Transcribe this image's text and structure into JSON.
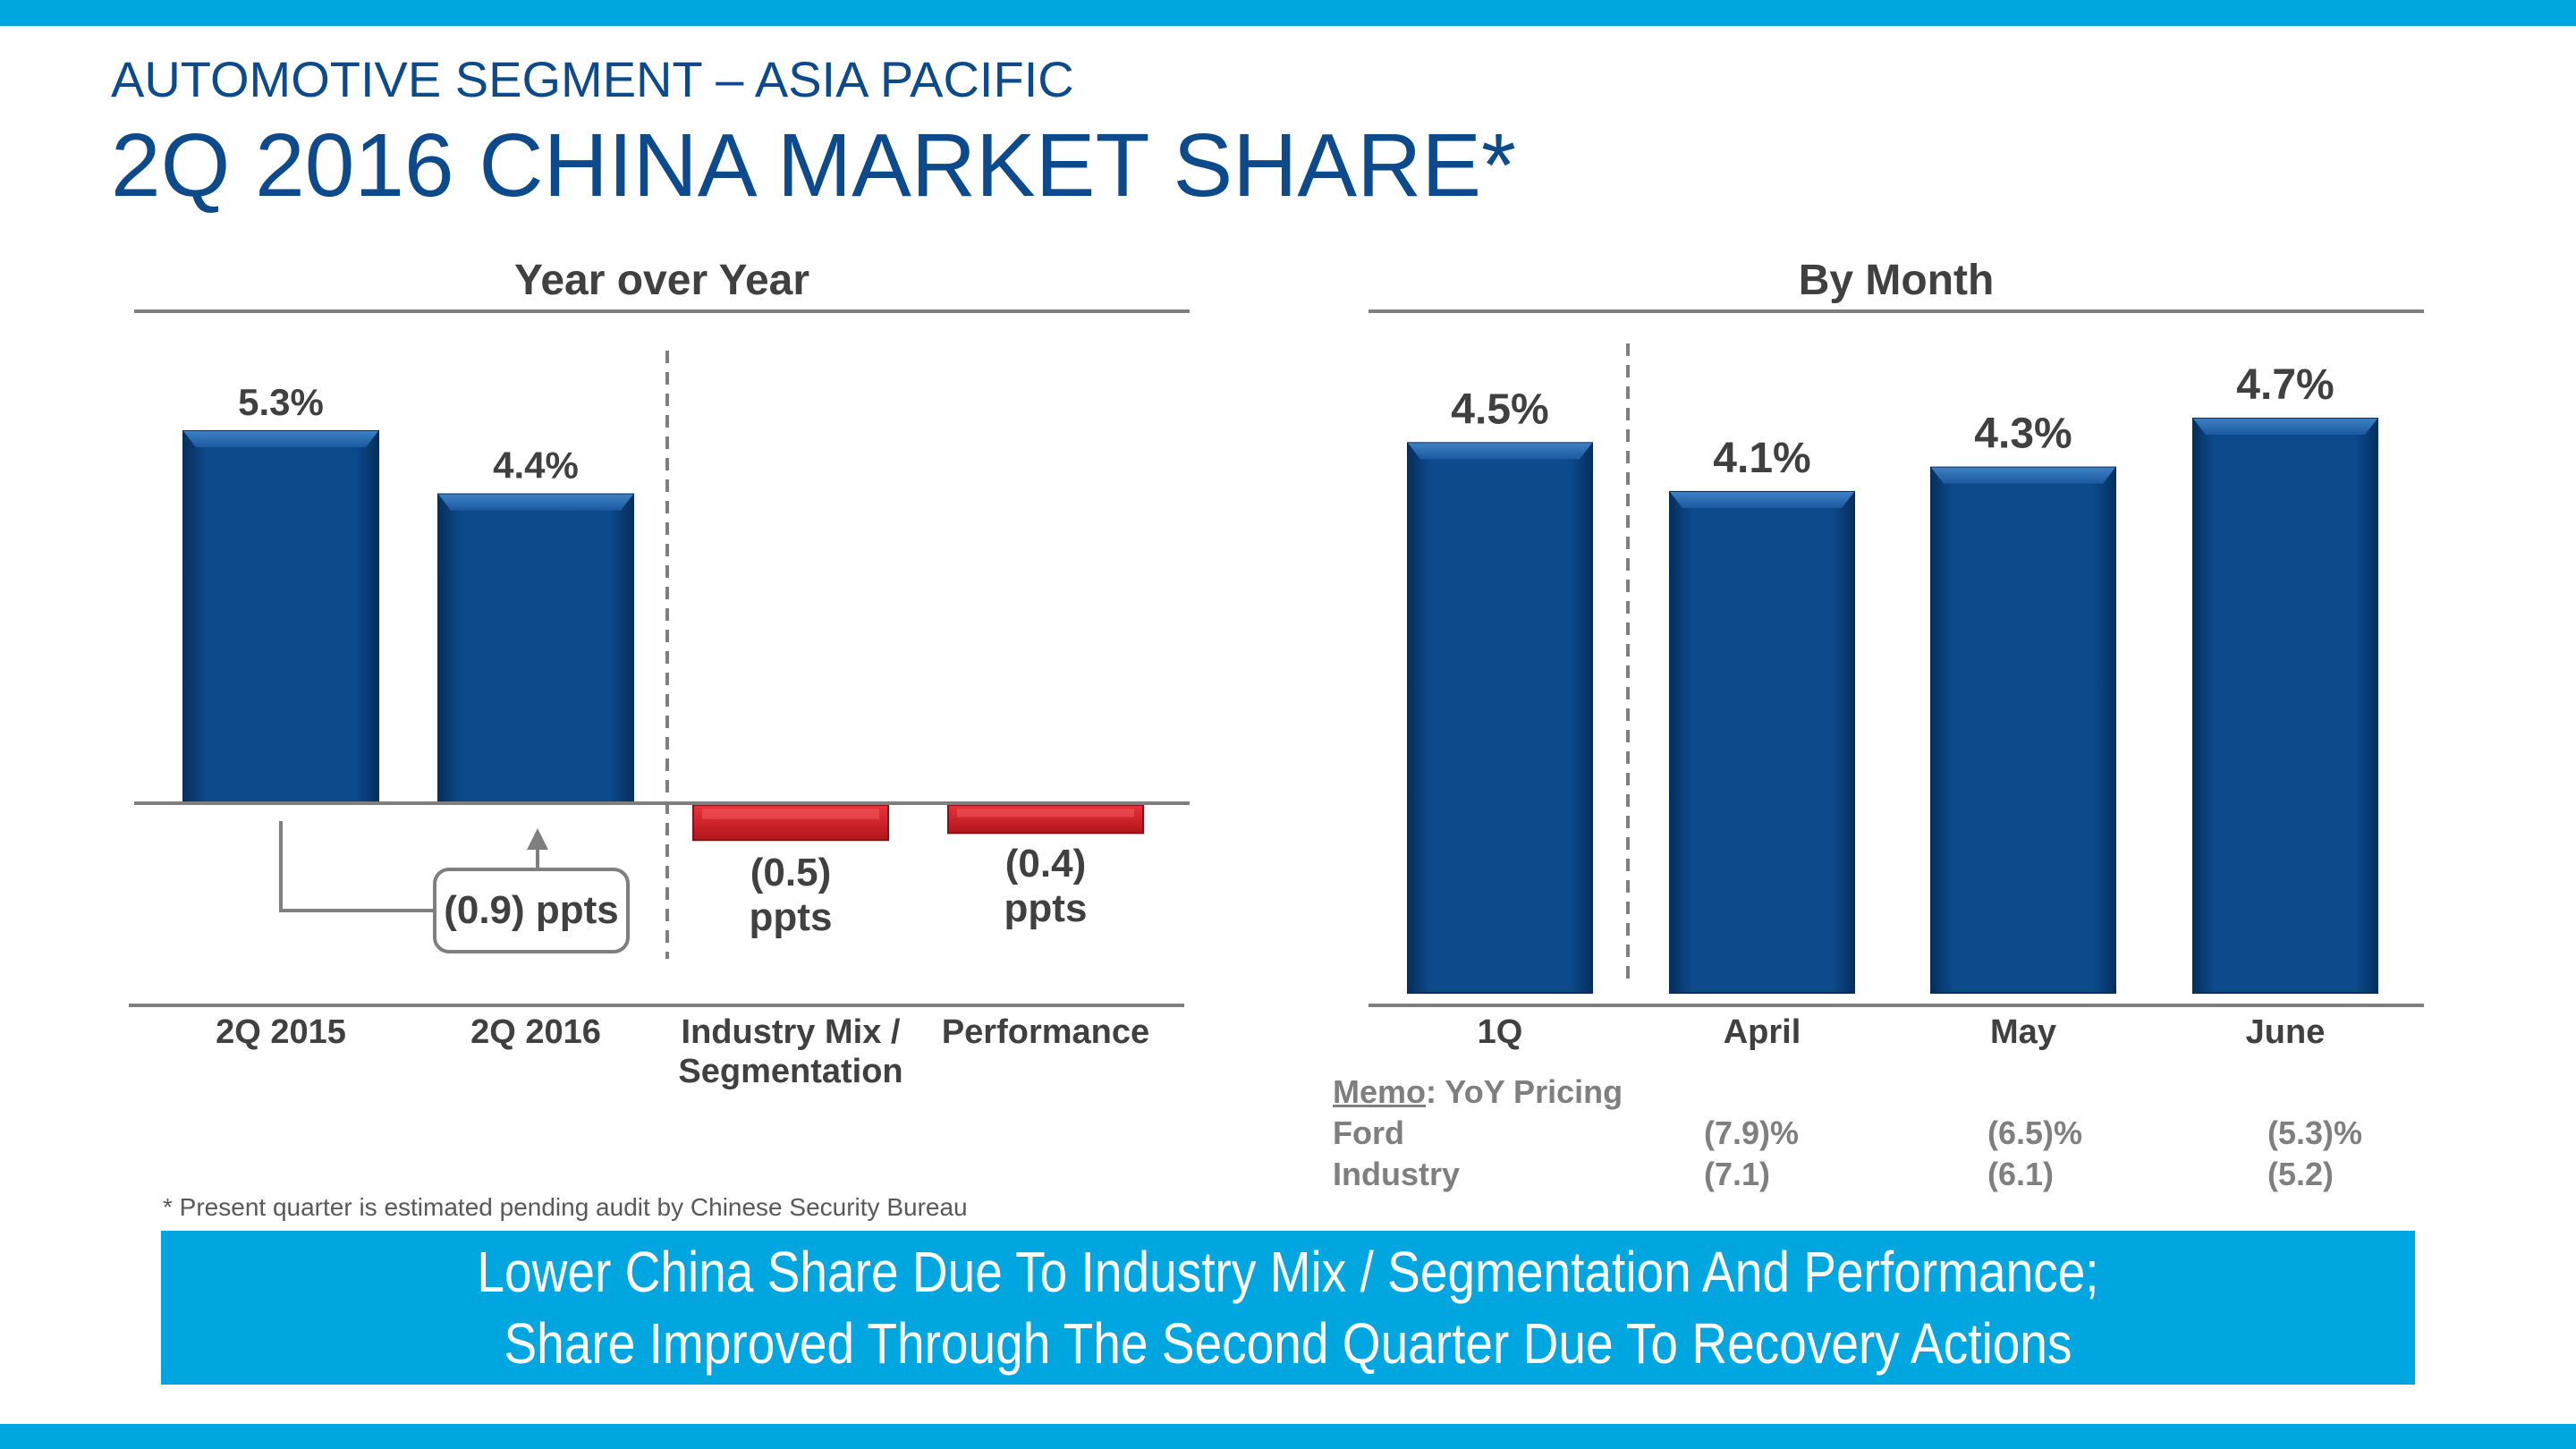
{
  "header": {
    "subtitle": "AUTOMOTIVE SEGMENT – ASIA PACIFIC",
    "title": "2Q 2016 CHINA MARKET SHARE*"
  },
  "colors": {
    "band": "#00a6e0",
    "title": "#0d4a8c",
    "bar_positive": "#0d4a8c",
    "bar_negative": "#cc1f24"
  },
  "chart_data": [
    {
      "type": "bar",
      "title": "Year over Year",
      "categories": [
        "2Q 2015",
        "2Q 2016",
        "Industry Mix / Segmentation",
        "Performance"
      ],
      "category_lines": [
        [
          "2Q 2015"
        ],
        [
          "2Q 2016"
        ],
        [
          "Industry Mix /",
          "Segmentation"
        ],
        [
          "Performance"
        ]
      ],
      "values": [
        5.3,
        4.4,
        -0.5,
        -0.4
      ],
      "data_labels": [
        [
          "5.3%"
        ],
        [
          "4.4%"
        ],
        [
          "(0.5)",
          "ppts"
        ],
        [
          "(0.4)",
          "ppts"
        ]
      ],
      "annotation": "(0.9) ppts",
      "unit": "%"
    },
    {
      "type": "bar",
      "title": "By Month",
      "categories": [
        "1Q",
        "April",
        "May",
        "June"
      ],
      "values": [
        4.5,
        4.1,
        4.3,
        4.7
      ],
      "data_labels": [
        "4.5%",
        "4.1%",
        "4.3%",
        "4.7%"
      ],
      "unit": "%"
    }
  ],
  "memo": {
    "label": "Memo",
    "title": "YoY Pricing",
    "rows": [
      {
        "name": "Ford",
        "values": [
          "(7.9)%",
          "(6.5)%",
          "(5.3)%"
        ]
      },
      {
        "name": "Industry",
        "values": [
          "(7.1)",
          "(6.1)",
          "(5.2)"
        ]
      }
    ]
  },
  "footnote": "*  Present quarter is estimated pending audit by Chinese Security Bureau",
  "banner": {
    "line1": "Lower China Share Due To Industry Mix / Segmentation And Performance;",
    "line2": "Share Improved Through The Second Quarter Due To Recovery Actions"
  }
}
